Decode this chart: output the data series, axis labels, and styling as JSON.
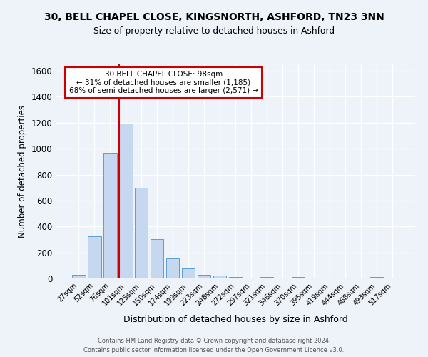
{
  "title1": "30, BELL CHAPEL CLOSE, KINGSNORTH, ASHFORD, TN23 3NN",
  "title2": "Size of property relative to detached houses in Ashford",
  "xlabel": "Distribution of detached houses by size in Ashford",
  "ylabel": "Number of detached properties",
  "footer1": "Contains HM Land Registry data © Crown copyright and database right 2024.",
  "footer2": "Contains public sector information licensed under the Open Government Licence v3.0.",
  "bar_labels": [
    "27sqm",
    "52sqm",
    "76sqm",
    "101sqm",
    "125sqm",
    "150sqm",
    "174sqm",
    "199sqm",
    "223sqm",
    "248sqm",
    "272sqm",
    "297sqm",
    "321sqm",
    "346sqm",
    "370sqm",
    "395sqm",
    "419sqm",
    "444sqm",
    "468sqm",
    "493sqm",
    "517sqm"
  ],
  "bar_values": [
    25,
    325,
    970,
    1195,
    700,
    305,
    155,
    75,
    30,
    20,
    12,
    0,
    10,
    0,
    12,
    0,
    0,
    0,
    0,
    10,
    0
  ],
  "bar_color": "#c5d8f0",
  "bar_edge_color": "#5a9fd4",
  "ylim": [
    0,
    1650
  ],
  "yticks": [
    0,
    200,
    400,
    600,
    800,
    1000,
    1200,
    1400,
    1600
  ],
  "property_label": "30 BELL CHAPEL CLOSE: 98sqm",
  "annotation_line1": "← 31% of detached houses are smaller (1,185)",
  "annotation_line2": "68% of semi-detached houses are larger (2,571) →",
  "vline_color": "#cc0000",
  "vline_x": 2.575,
  "annotation_box_facecolor": "#ffffff",
  "annotation_box_edgecolor": "#cc0000",
  "background_color": "#eef2f9",
  "grid_color": "#ffffff"
}
